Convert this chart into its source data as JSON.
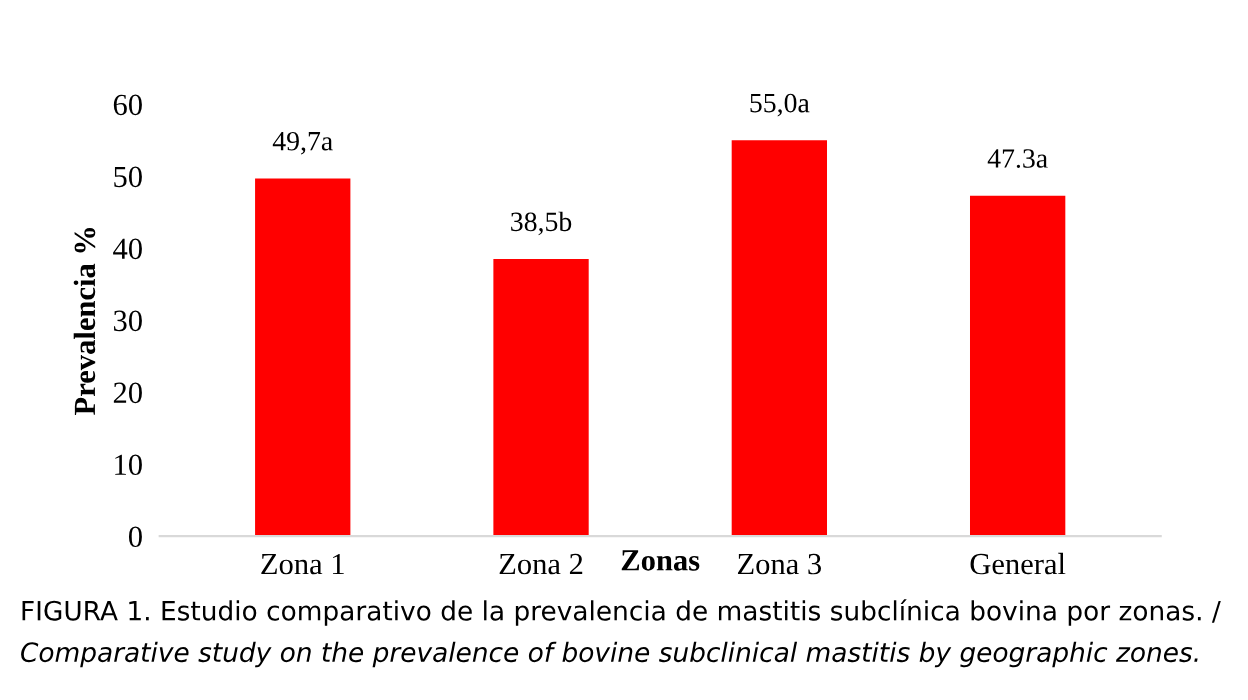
{
  "chart_data": {
    "type": "bar",
    "xlabel": "Zonas",
    "ylabel": "Prevalencia %",
    "categories": [
      "Zona 1",
      "Zona 2",
      "Zona 3",
      "General"
    ],
    "series": [
      {
        "color": "#ff0000",
        "values": [
          49.7,
          38.5,
          55.0,
          47.3
        ],
        "value_labels": [
          "49,7a",
          "38,5b",
          "55,0a",
          "47.3a"
        ]
      }
    ],
    "ylim": [
      0,
      60
    ],
    "yticks": [
      0,
      10,
      20,
      30,
      40,
      50,
      60
    ],
    "grid": false,
    "legend": false,
    "annotations": [
      "FIGURA 1. Estudio comparativo de la prevalencia de mastitis subclínica bovina por zonas. /",
      "Comparative study on the prevalence of bovine subclinical mastitis by geographic zones."
    ]
  }
}
